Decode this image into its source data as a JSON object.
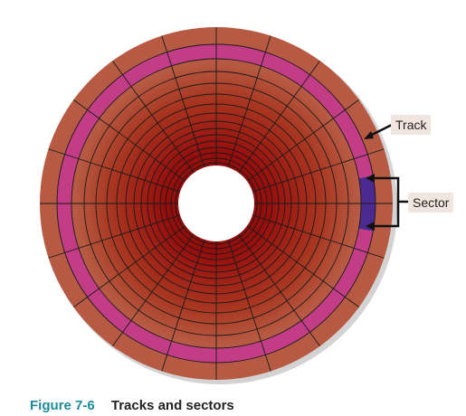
{
  "figure": {
    "labels": {
      "track": "Track",
      "sector": "Sector"
    },
    "caption": {
      "number": "Figure 7-6",
      "text": "Tracks and sectors"
    },
    "colors": {
      "outer_platter": "#b75a43",
      "inner_dark": "#8e0c0c",
      "highlight_track": "#c33c86",
      "highlight_sector": "#4a2a90",
      "grid_lines": "#1a1a1a",
      "shadow": "#cfcfcf"
    }
  }
}
